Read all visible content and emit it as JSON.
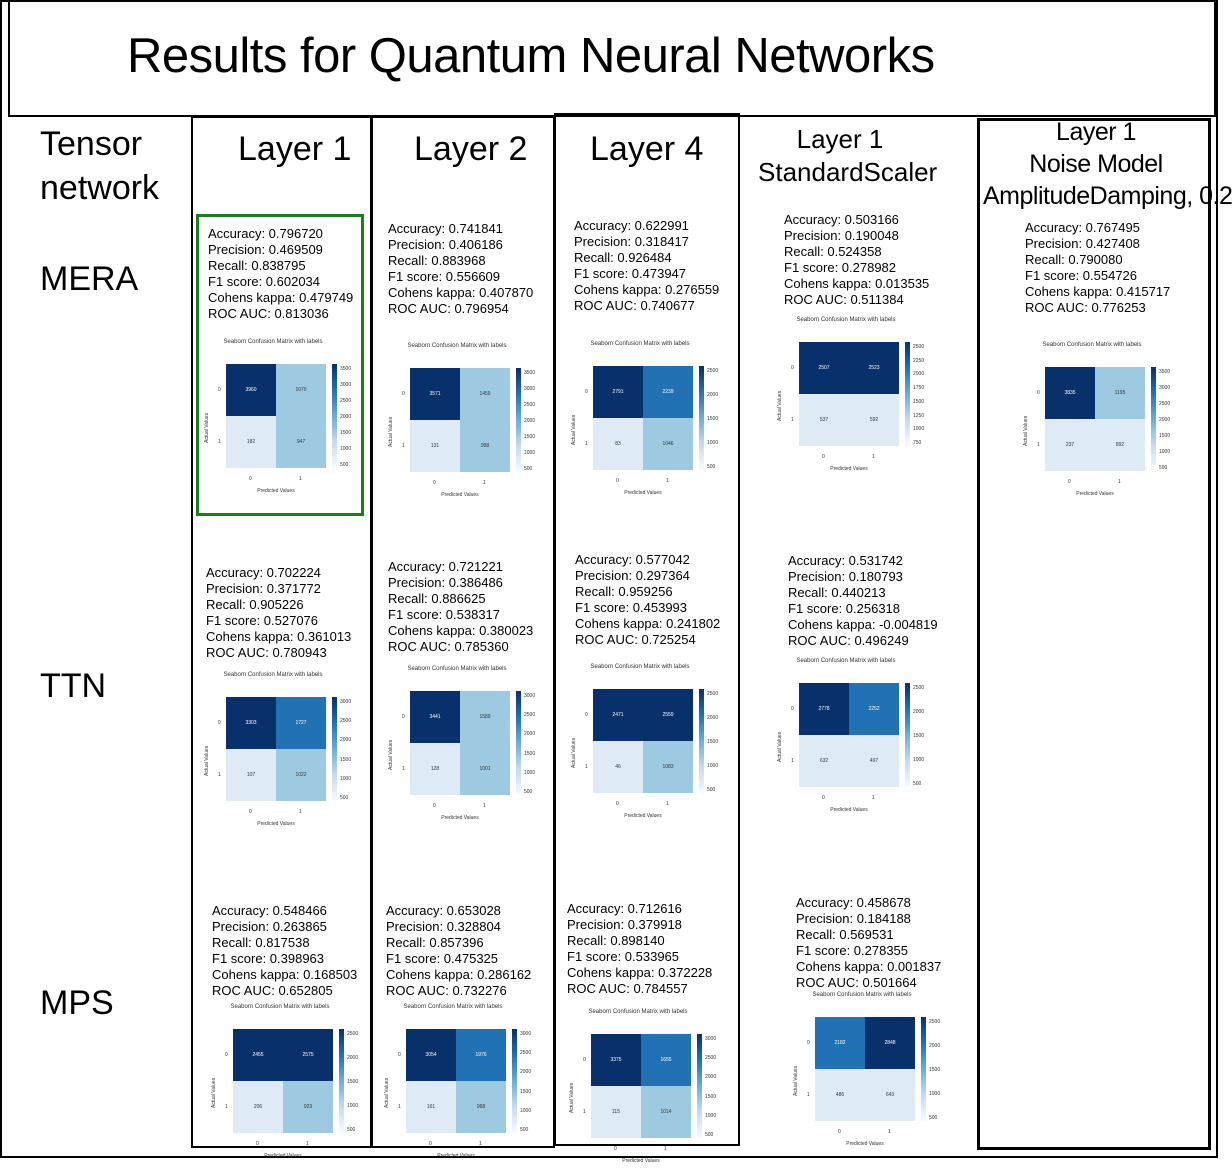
{
  "title": "Results for Quantum Neural Networks",
  "corner_label": [
    "Tensor",
    "network"
  ],
  "rows": [
    "MERA",
    "TTN",
    "MPS"
  ],
  "columns": [
    {
      "lines": [
        "Layer 1"
      ]
    },
    {
      "lines": [
        "Layer 2"
      ]
    },
    {
      "lines": [
        "Layer 4"
      ]
    },
    {
      "lines": [
        "Layer 1",
        "StandardScaler"
      ]
    },
    {
      "lines": [
        "Layer 1",
        "Noise Model",
        "AmplitudeDamping, 0.2"
      ]
    }
  ],
  "metric_labels": [
    "Accuracy",
    "Precision",
    "Recall",
    "F1 score",
    "Cohens kappa",
    "ROC AUC"
  ],
  "cm_text": {
    "title": "Seaborn Confusion Matrix with labels",
    "xlabel": "Predicted Values",
    "ylabel": "Actual Values",
    "ticks": [
      "0",
      "1"
    ]
  },
  "colors": {
    "dark": "#08306b",
    "mid": "#2171b5",
    "light": "#9ecae1",
    "pale": "#deebf7",
    "highlight": "#1a7f1a"
  },
  "cells": [
    {
      "id": "mera-l1",
      "row": 0,
      "col": 0,
      "highlighted": true,
      "metrics": [
        "0.796720",
        "0.469509",
        "0.838795",
        "0.602034",
        "0.479749",
        "0.813036"
      ],
      "matrix": [
        [
          3960,
          1070
        ],
        [
          182,
          947
        ]
      ],
      "colorbar": [
        "3500",
        "3000",
        "2500",
        "2000",
        "1500",
        "1000",
        "500"
      ]
    },
    {
      "id": "mera-l2",
      "row": 0,
      "col": 1,
      "metrics": [
        "0.741841",
        "0.406186",
        "0.883968",
        "0.556609",
        "0.407870",
        "0.796954"
      ],
      "matrix": [
        [
          3571,
          1459
        ],
        [
          131,
          998
        ]
      ],
      "colorbar": [
        "3500",
        "3000",
        "2500",
        "2000",
        "1500",
        "1000",
        "500"
      ]
    },
    {
      "id": "mera-l4",
      "row": 0,
      "col": 2,
      "metrics": [
        "0.622991",
        "0.318417",
        "0.926484",
        "0.473947",
        "0.276559",
        "0.740677"
      ],
      "matrix": [
        [
          2791,
          2239
        ],
        [
          83,
          1046
        ]
      ],
      "colorbar": [
        "2500",
        "2000",
        "1500",
        "1000",
        "500"
      ]
    },
    {
      "id": "mera-ss",
      "row": 0,
      "col": 3,
      "metrics": [
        "0.503166",
        "0.190048",
        "0.524358",
        "0.278982",
        "0.013535",
        "0.511384"
      ],
      "matrix": [
        [
          2507,
          2523
        ],
        [
          537,
          592
        ]
      ],
      "colorbar": [
        "2500",
        "2250",
        "2000",
        "1750",
        "1500",
        "1250",
        "1000",
        "750"
      ]
    },
    {
      "id": "mera-noise",
      "row": 0,
      "col": 4,
      "metrics": [
        "0.767495",
        "0.427408",
        "0.790080",
        "0.554726",
        "0.415717",
        "0.776253"
      ],
      "matrix": [
        [
          3835,
          1195
        ],
        [
          237,
          892
        ]
      ],
      "colorbar": [
        "3500",
        "3000",
        "2500",
        "2000",
        "1500",
        "1000",
        "500"
      ]
    },
    {
      "id": "ttn-l1",
      "row": 1,
      "col": 0,
      "metrics": [
        "0.702224",
        "0.371772",
        "0.905226",
        "0.527076",
        "0.361013",
        "0.780943"
      ],
      "matrix": [
        [
          3303,
          1727
        ],
        [
          107,
          1022
        ]
      ],
      "colorbar": [
        "3000",
        "2500",
        "2000",
        "1500",
        "1000",
        "500"
      ]
    },
    {
      "id": "ttn-l2",
      "row": 1,
      "col": 1,
      "metrics": [
        "0.721221",
        "0.386486",
        "0.886625",
        "0.538317",
        "0.380023",
        "0.785360"
      ],
      "matrix": [
        [
          3441,
          1589
        ],
        [
          128,
          1001
        ]
      ],
      "colorbar": [
        "3000",
        "2500",
        "2000",
        "1500",
        "1000",
        "500"
      ]
    },
    {
      "id": "ttn-l4",
      "row": 1,
      "col": 2,
      "metrics": [
        "0.577042",
        "0.297364",
        "0.959256",
        "0.453993",
        "0.241802",
        "0.725254"
      ],
      "matrix": [
        [
          2471,
          2559
        ],
        [
          46,
          1083
        ]
      ],
      "colorbar": [
        "2500",
        "2000",
        "1500",
        "1000",
        "500"
      ]
    },
    {
      "id": "ttn-ss",
      "row": 1,
      "col": 3,
      "metrics": [
        "0.531742",
        "0.180793",
        "0.440213",
        "0.256318",
        "-0.004819",
        "0.496249"
      ],
      "matrix": [
        [
          2778,
          2252
        ],
        [
          632,
          497
        ]
      ],
      "colorbar": [
        "2500",
        "2000",
        "1500",
        "1000",
        "500"
      ]
    },
    {
      "id": "mps-l1",
      "row": 2,
      "col": 0,
      "metrics": [
        "0.548466",
        "0.263865",
        "0.817538",
        "0.398963",
        "0.168503",
        "0.652805"
      ],
      "matrix": [
        [
          2455,
          2575
        ],
        [
          206,
          923
        ]
      ],
      "colorbar": [
        "2500",
        "2000",
        "1500",
        "1000",
        "500"
      ]
    },
    {
      "id": "mps-l2",
      "row": 2,
      "col": 1,
      "metrics": [
        "0.653028",
        "0.328804",
        "0.857396",
        "0.475325",
        "0.286162",
        "0.732276"
      ],
      "matrix": [
        [
          3054,
          1976
        ],
        [
          161,
          968
        ]
      ],
      "colorbar": [
        "3000",
        "2500",
        "2000",
        "1500",
        "1000",
        "500"
      ]
    },
    {
      "id": "mps-l4",
      "row": 2,
      "col": 2,
      "metrics": [
        "0.712616",
        "0.379918",
        "0.898140",
        "0.533965",
        "0.372228",
        "0.784557"
      ],
      "matrix": [
        [
          3375,
          1655
        ],
        [
          115,
          1014
        ]
      ],
      "colorbar": [
        "3000",
        "2500",
        "2000",
        "1500",
        "1000",
        "500"
      ]
    },
    {
      "id": "mps-ss",
      "row": 2,
      "col": 3,
      "metrics": [
        "0.458678",
        "0.184188",
        "0.569531",
        "0.278355",
        "0.001837",
        "0.501664"
      ],
      "matrix": [
        [
          2182,
          2848
        ],
        [
          486,
          643
        ]
      ],
      "colorbar": [
        "2500",
        "2000",
        "1500",
        "1000",
        "500"
      ]
    }
  ]
}
